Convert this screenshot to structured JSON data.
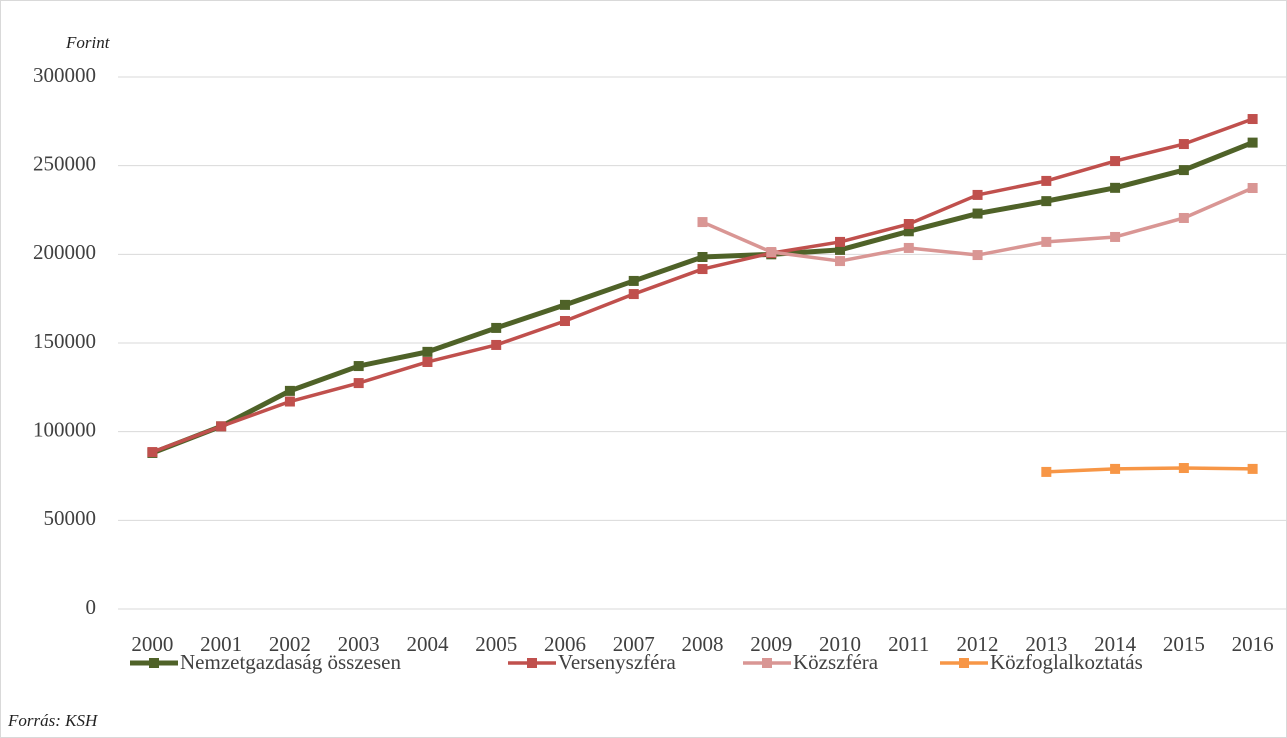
{
  "chart_data": {
    "type": "line",
    "y_label": "Forint",
    "source": "Forrás: KSH",
    "categories": [
      "2000",
      "2001",
      "2002",
      "2003",
      "2004",
      "2005",
      "2006",
      "2007",
      "2008",
      "2009",
      "2010",
      "2011",
      "2012",
      "2013",
      "2014",
      "2015",
      "2016"
    ],
    "series": [
      {
        "name": "Nemzetgazdaság összesen",
        "color": "#4f6228",
        "values": [
          88000,
          103000,
          123000,
          137000,
          145000,
          158500,
          171500,
          185000,
          198500,
          200000,
          202500,
          213000,
          223000,
          230000,
          237500,
          247500,
          263000
        ]
      },
      {
        "name": "Versenyszféra",
        "color": "#c0504d",
        "values": [
          88500,
          103000,
          117000,
          127400,
          139300,
          148900,
          162400,
          177600,
          191700,
          200700,
          207000,
          217100,
          233500,
          241400,
          252600,
          262200,
          276300
        ]
      },
      {
        "name": "Közszféra",
        "color": "#d99694",
        "values": [
          null,
          null,
          null,
          null,
          null,
          null,
          null,
          null,
          218200,
          201300,
          196200,
          203600,
          199600,
          207000,
          209800,
          220500,
          237400
        ]
      },
      {
        "name": "Közfoglalkoztatás",
        "color": "#f79646",
        "values": [
          null,
          null,
          null,
          null,
          null,
          null,
          null,
          null,
          null,
          null,
          null,
          null,
          null,
          77300,
          79000,
          79500,
          79000
        ]
      }
    ],
    "ylim": [
      0,
      300000
    ],
    "yticks": [
      0,
      50000,
      100000,
      150000,
      200000,
      250000,
      300000
    ],
    "grid": true
  }
}
